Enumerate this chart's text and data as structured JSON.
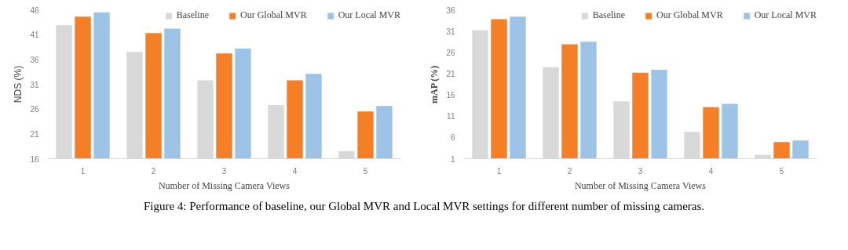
{
  "chart_data": [
    {
      "type": "bar",
      "ylabel": "NDS (%)",
      "xlabel": "Number of Missing Camera Views",
      "categories": [
        "1",
        "2",
        "3",
        "4",
        "5"
      ],
      "series": [
        {
          "name": "Baseline",
          "color": "#d9d9d9",
          "values": [
            42.9,
            37.5,
            31.8,
            26.8,
            17.5
          ]
        },
        {
          "name": "Our Global MVR",
          "color": "#f47f26",
          "values": [
            44.6,
            41.3,
            37.2,
            31.8,
            25.5
          ]
        },
        {
          "name": "Our Local MVR",
          "color": "#9dc3e6",
          "values": [
            45.5,
            42.2,
            38.2,
            33.1,
            26.6
          ]
        }
      ],
      "ylim": [
        16,
        46
      ],
      "yticks": [
        16,
        21,
        26,
        31,
        36,
        41,
        46
      ],
      "grid": false,
      "legend": "top"
    },
    {
      "type": "bar",
      "ylabel": "mAP (%)",
      "xlabel": "Number of Missing Camera Views",
      "categories": [
        "1",
        "2",
        "3",
        "4",
        "5"
      ],
      "series": [
        {
          "name": "Baseline",
          "color": "#d9d9d9",
          "values": [
            31.2,
            22.5,
            14.5,
            7.3,
            1.9
          ]
        },
        {
          "name": "Our Global MVR",
          "color": "#f47f26",
          "values": [
            33.8,
            27.9,
            21.2,
            13.1,
            4.9
          ]
        },
        {
          "name": "Our Local MVR",
          "color": "#9dc3e6",
          "values": [
            34.4,
            28.5,
            21.9,
            13.9,
            5.3
          ]
        }
      ],
      "ylim": [
        1,
        36
      ],
      "yticks": [
        1,
        6,
        11,
        16,
        21,
        26,
        31,
        36
      ],
      "grid": false,
      "legend": "top",
      "annotations": [
        "Figure 4: Performance of baseline, our Global MVR and Local MVR settings for different number of missing cameras."
      ]
    }
  ]
}
